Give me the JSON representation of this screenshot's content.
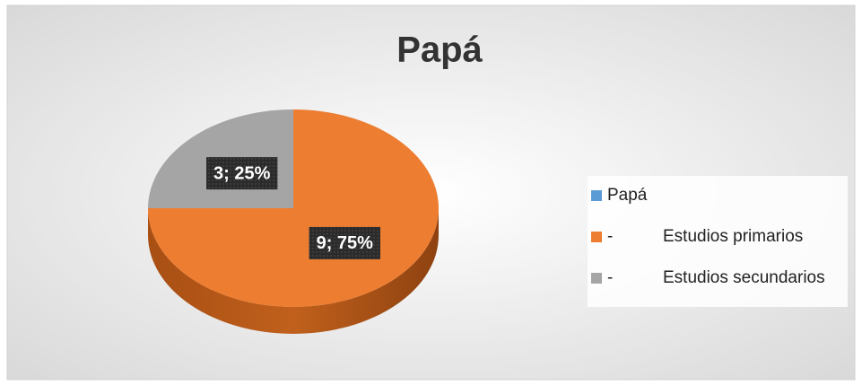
{
  "chart_data": {
    "type": "pie",
    "title": "Papá",
    "categories": [
      "Papá",
      "-\tEstudios primarios",
      "-\tEstudios secundarios"
    ],
    "values": [
      null,
      9,
      3
    ],
    "value_labels": [
      null,
      "9; 75%",
      "3; 25%"
    ],
    "colors": [
      "#5b9bd5",
      "#ed7d31",
      "#a5a5a5"
    ],
    "legend": "right"
  }
}
